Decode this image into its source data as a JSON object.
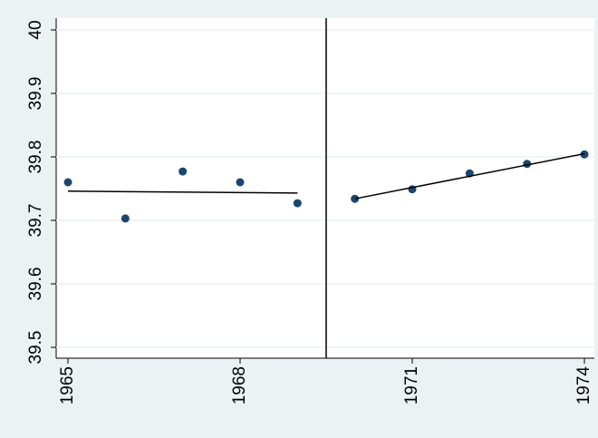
{
  "chart_data": {
    "type": "scatter",
    "xlim": [
      1965,
      1974
    ],
    "ylim": [
      39.5,
      40
    ],
    "xticks": [
      1965,
      1968,
      1971,
      1974
    ],
    "yticks": [
      39.5,
      39.6,
      39.7,
      39.8,
      39.9,
      40
    ],
    "grid": true,
    "xline": 1969.5,
    "series": [
      {
        "type": "scatter",
        "color": "#1a476f",
        "x": [
          1965,
          1966,
          1967,
          1968,
          1969
        ],
        "values": [
          39.76,
          39.703,
          39.777,
          39.76,
          39.727
        ]
      },
      {
        "type": "line",
        "color": "#000000",
        "x": [
          1965,
          1969
        ],
        "values": [
          39.746,
          39.743
        ]
      },
      {
        "type": "scatter",
        "color": "#1a476f",
        "x": [
          1970,
          1971,
          1972,
          1973,
          1974
        ],
        "values": [
          39.734,
          39.749,
          39.774,
          39.789,
          39.804
        ]
      },
      {
        "type": "line",
        "color": "#000000",
        "x": [
          1970,
          1974
        ],
        "values": [
          39.734,
          39.805
        ]
      }
    ]
  }
}
